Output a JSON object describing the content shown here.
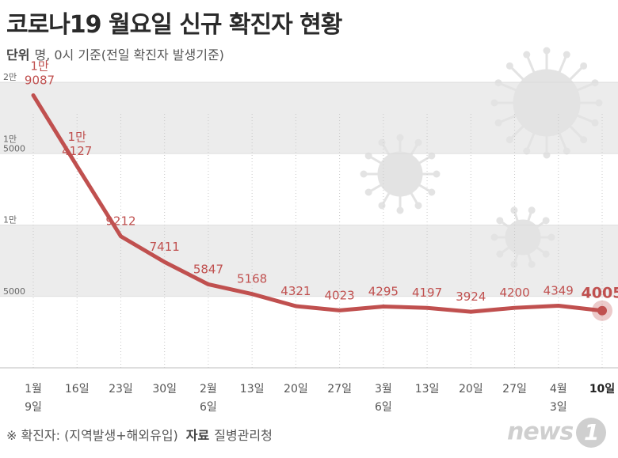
{
  "header": {
    "title": "코로나19 월요일 신규 확진자 현황",
    "unit_label": "단위",
    "unit_text": "명, 0시 기준(전일 확진자 발생기준)"
  },
  "footer": {
    "note": "※ 확진자: (지역발생+해외유입)",
    "source_label": "자료",
    "source": "질병관리청",
    "logo": "news",
    "logo_badge": "1"
  },
  "colors": {
    "line": "#c0504f",
    "label": "#c0504f",
    "band": "#ececec",
    "grid": "#d9d9d9"
  },
  "chart_data": {
    "type": "line",
    "title": "코로나19 월요일 신규 확진자 현황",
    "ylim": [
      0,
      20000
    ],
    "y_ticks": [
      {
        "value": 5000,
        "line1": "",
        "line2": "5000"
      },
      {
        "value": 10000,
        "line1": "1만",
        "line2": ""
      },
      {
        "value": 15000,
        "line1": "1만",
        "line2": "5000"
      },
      {
        "value": 20000,
        "line1": "2만",
        "line2": ""
      }
    ],
    "categories": [
      {
        "line1": "1월",
        "line2": "9일"
      },
      {
        "line1": "16일",
        "line2": ""
      },
      {
        "line1": "23일",
        "line2": ""
      },
      {
        "line1": "30일",
        "line2": ""
      },
      {
        "line1": "2월",
        "line2": "6일"
      },
      {
        "line1": "13일",
        "line2": ""
      },
      {
        "line1": "20일",
        "line2": ""
      },
      {
        "line1": "27일",
        "line2": ""
      },
      {
        "line1": "3월",
        "line2": "6일"
      },
      {
        "line1": "13일",
        "line2": ""
      },
      {
        "line1": "20일",
        "line2": ""
      },
      {
        "line1": "27일",
        "line2": ""
      },
      {
        "line1": "4월",
        "line2": "3일"
      },
      {
        "line1": "10일",
        "line2": ""
      }
    ],
    "values": [
      19087,
      14127,
      9212,
      7411,
      5847,
      5168,
      4321,
      4023,
      4295,
      4197,
      3924,
      4200,
      4349,
      4005
    ],
    "labels": [
      {
        "line1": "1만",
        "line2": "9087"
      },
      {
        "line1": "1만",
        "line2": "4127"
      },
      {
        "line1": "",
        "line2": "9212"
      },
      {
        "line1": "",
        "line2": "7411"
      },
      {
        "line1": "",
        "line2": "5847"
      },
      {
        "line1": "",
        "line2": "5168"
      },
      {
        "line1": "",
        "line2": "4321"
      },
      {
        "line1": "",
        "line2": "4023"
      },
      {
        "line1": "",
        "line2": "4295"
      },
      {
        "line1": "",
        "line2": "4197"
      },
      {
        "line1": "",
        "line2": "3924"
      },
      {
        "line1": "",
        "line2": "4200"
      },
      {
        "line1": "",
        "line2": "4349"
      },
      {
        "line1": "",
        "line2": "4005"
      }
    ]
  }
}
